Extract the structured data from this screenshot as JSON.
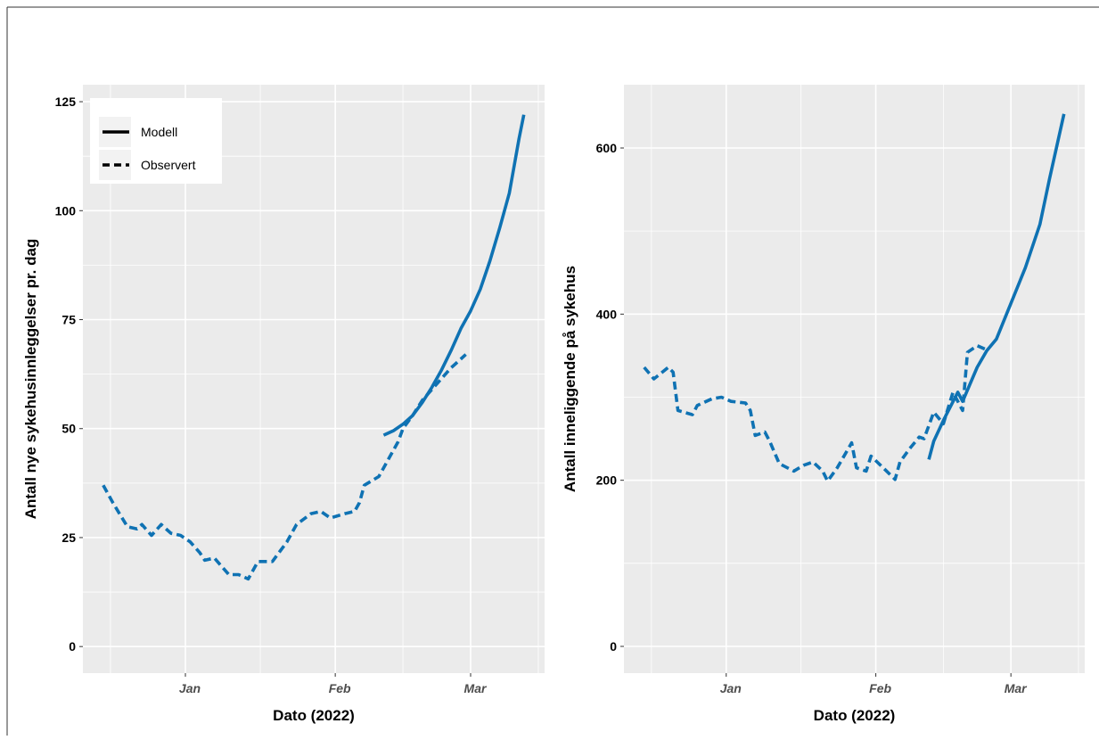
{
  "chart_data": [
    {
      "type": "line",
      "x_label": "Dato (2022)",
      "y_label": "Antall nye sykehusinnleggelser pr. dag",
      "xlim": [
        -20.2,
        75.3
      ],
      "xticks": [
        {
          "value": 1,
          "label": "Jan"
        },
        {
          "value": 32,
          "label": "Feb"
        },
        {
          "value": 60,
          "label": "Mar"
        }
      ],
      "ylim": [
        -6.1,
        128.9
      ],
      "yticks": [
        0,
        25,
        50,
        75,
        100,
        125
      ],
      "grid": true,
      "legend": "top-left",
      "series": [
        {
          "name": "Modell",
          "color": "#0f72b3",
          "linetype": "solid",
          "x": [
            42,
            44,
            46,
            48,
            50,
            52,
            54,
            56,
            58,
            60,
            62,
            64,
            66,
            68,
            70,
            71
          ],
          "values": [
            48.5,
            49.5,
            51,
            53,
            56,
            59.5,
            63.5,
            68,
            73,
            77,
            82,
            88.5,
            96,
            104,
            116.5,
            122
          ]
        },
        {
          "name": "Observert",
          "color": "#0f72b3",
          "linetype": "dashed",
          "x": [
            -16,
            -14,
            -11,
            -9,
            -8,
            -6,
            -4,
            -2,
            0,
            2,
            4,
            5,
            7,
            10,
            12,
            14,
            16,
            19,
            22,
            24,
            27,
            29,
            31,
            34,
            36,
            37,
            38,
            41,
            43,
            45,
            46,
            48,
            50,
            52,
            54,
            56,
            58,
            59
          ],
          "values": [
            37,
            33,
            27.5,
            27,
            28,
            25.5,
            28,
            26,
            25.5,
            24,
            21.5,
            19.8,
            20.3,
            16.5,
            16.5,
            15.5,
            19.5,
            19.5,
            24,
            28,
            30.5,
            31,
            29.5,
            30.5,
            31,
            33,
            37,
            39,
            43,
            47,
            50,
            53,
            56.5,
            59,
            61.5,
            64,
            66,
            67
          ]
        }
      ]
    },
    {
      "type": "line",
      "x_label": "Dato (2022)",
      "y_label": "Antall inneliggende på sykehus",
      "xlim": [
        -20.2,
        75.3
      ],
      "xticks": [
        {
          "value": 1,
          "label": "Jan"
        },
        {
          "value": 32,
          "label": "Feb"
        },
        {
          "value": 60,
          "label": "Mar"
        }
      ],
      "ylim": [
        -32.2,
        676.2
      ],
      "yticks": [
        0,
        200,
        400,
        600
      ],
      "grid": true,
      "series": [
        {
          "color": "#0f72b3",
          "linetype": "solid",
          "x": [
            43,
            44,
            46,
            49,
            50,
            53,
            55,
            57,
            60,
            63,
            66,
            68,
            71
          ],
          "values": [
            225,
            247,
            272,
            306,
            295,
            336,
            356,
            370,
            413,
            456,
            508,
            563,
            641
          ]
        },
        {
          "color": "#0f72b3",
          "linetype": "dashed",
          "x": [
            -16,
            -14,
            -11,
            -10,
            -9,
            -6,
            -5,
            -2,
            0,
            2,
            5,
            6,
            7,
            9,
            10,
            12,
            15,
            17,
            19,
            21,
            22,
            24,
            27,
            28,
            30,
            31,
            33,
            36,
            37,
            39,
            41,
            42,
            44,
            46,
            48,
            50,
            51,
            53,
            55
          ],
          "values": [
            336,
            322,
            336,
            330,
            284,
            279,
            290,
            298,
            300,
            295,
            293,
            284,
            254,
            258,
            247,
            220,
            211,
            218,
            222,
            211,
            199,
            215,
            245,
            215,
            211,
            229,
            218,
            201,
            222,
            238,
            252,
            250,
            282,
            268,
            306,
            284,
            354,
            362,
            357
          ]
        }
      ]
    }
  ]
}
